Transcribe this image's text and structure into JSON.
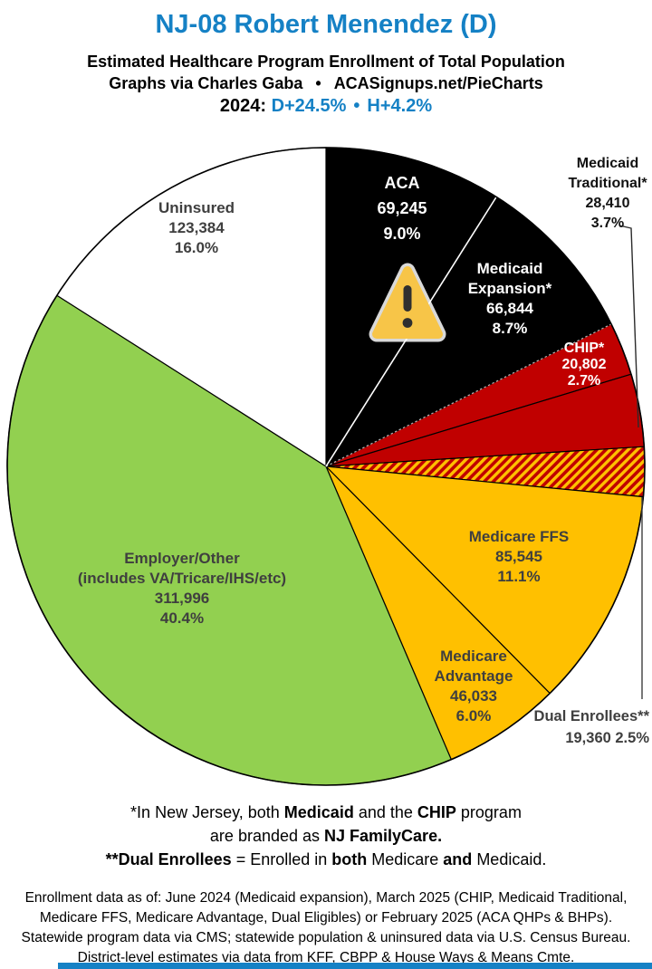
{
  "header": {
    "title": "NJ-08 Robert Menendez (D)",
    "subtitle": "Estimated Healthcare Program Enrollment of Total Population",
    "credit_left": "Graphs via Charles Gaba",
    "credit_bullet": "•",
    "credit_right": "ACASignups.net/PieCharts",
    "election_year": "2024:",
    "election_d": "D+24.5%",
    "election_bullet": "•",
    "election_h": "H+4.2%"
  },
  "colors": {
    "accent_blue": "#1581C5",
    "slice_black": "#000000",
    "slice_red": "#C00000",
    "slice_yellow": "#FFC000",
    "slice_green": "#92D050",
    "slice_white": "#FFFFFF",
    "hatch_base": "#C00000",
    "hatch_stripe": "#FFC000",
    "label_dark": "#3F3F3F",
    "warning_fill": "#F7C548",
    "warning_glyph": "#2F2F2F"
  },
  "chart_data": {
    "type": "pie",
    "title": "NJ-08 Robert Menendez (D)",
    "subtitle": "Estimated Healthcare Program Enrollment of Total Population",
    "start_angle_deg": 0,
    "direction": "clockwise",
    "legend": "none (labels on slices)",
    "slices": [
      {
        "id": "aca",
        "name": "ACA",
        "value": 69245,
        "percent": "9.0%",
        "color": "#000000",
        "label_lines": [
          "ACA",
          "69,245",
          "9.0%"
        ]
      },
      {
        "id": "medicaid-expansion",
        "name": "Medicaid Expansion*",
        "value": 66844,
        "percent": "8.7%",
        "color": "#000000",
        "label_lines": [
          "Medicaid",
          "Expansion*",
          "66,844",
          "8.7%"
        ]
      },
      {
        "id": "chip",
        "name": "CHIP*",
        "value": 20802,
        "percent": "2.7%",
        "color": "#C00000",
        "label_lines": [
          "CHIP*",
          "20,802",
          "2.7%"
        ]
      },
      {
        "id": "medicaid-traditional",
        "name": "Medicaid Traditional*",
        "value": 28410,
        "percent": "3.7%",
        "color": "#C00000",
        "label_lines": [
          "Medicaid",
          "Traditional*",
          "28,410",
          "3.7%"
        ]
      },
      {
        "id": "dual-enrollees",
        "name": "Dual Enrollees**",
        "value": 19360,
        "percent": "2.5%",
        "color": "hatch",
        "label_lines": [
          "Dual Enrollees**",
          "19,360 2.5%"
        ]
      },
      {
        "id": "medicare-ffs",
        "name": "Medicare FFS",
        "value": 85545,
        "percent": "11.1%",
        "color": "#FFC000",
        "label_lines": [
          "Medicare FFS",
          "85,545",
          "11.1%"
        ]
      },
      {
        "id": "medicare-advantage",
        "name": "Medicare Advantage",
        "value": 46033,
        "percent": "6.0%",
        "color": "#FFC000",
        "label_lines": [
          "Medicare",
          "Advantage",
          "46,033",
          "6.0%"
        ]
      },
      {
        "id": "employer-other",
        "name": "Employer/Other (includes VA/Tricare/IHS/etc)",
        "value": 311996,
        "percent": "40.4%",
        "color": "#92D050",
        "label_lines": [
          "Employer/Other",
          "(includes VA/Tricare/IHS/etc)",
          "311,996",
          "40.4%"
        ]
      },
      {
        "id": "uninsured",
        "name": "Uninsured",
        "value": 123384,
        "percent": "16.0%",
        "color": "#FFFFFF",
        "label_lines": [
          "Uninsured",
          "123,384",
          "16.0%"
        ]
      }
    ]
  },
  "footnotes": {
    "l1a": "*In New Jersey, both ",
    "l1b": "Medicaid",
    "l1c": " and the ",
    "l1d": "CHIP",
    "l1e": " program",
    "l2a": "are branded as ",
    "l2b": "NJ FamilyCare.",
    "l3a": "**Dual Enrollees",
    "l3b": " = Enrolled in ",
    "l3c": "both",
    "l3d": " Medicare ",
    "l3e": "and",
    "l3f": " Medicaid."
  },
  "source": {
    "line1": "Enrollment data as of: June 2024 (Medicaid expansion), March 2025 (CHIP, Medicaid Traditional,",
    "line2": "Medicare FFS, Medicare Advantage, Dual Eligibles) or February 2025 (ACA QHPs & BHPs).",
    "line3": "Statewide program data via CMS; statewide population & uninsured data via U.S. Census Bureau.",
    "line4": "District-level estimates via data from KFF, CBPP & House Ways & Means Cmte."
  }
}
